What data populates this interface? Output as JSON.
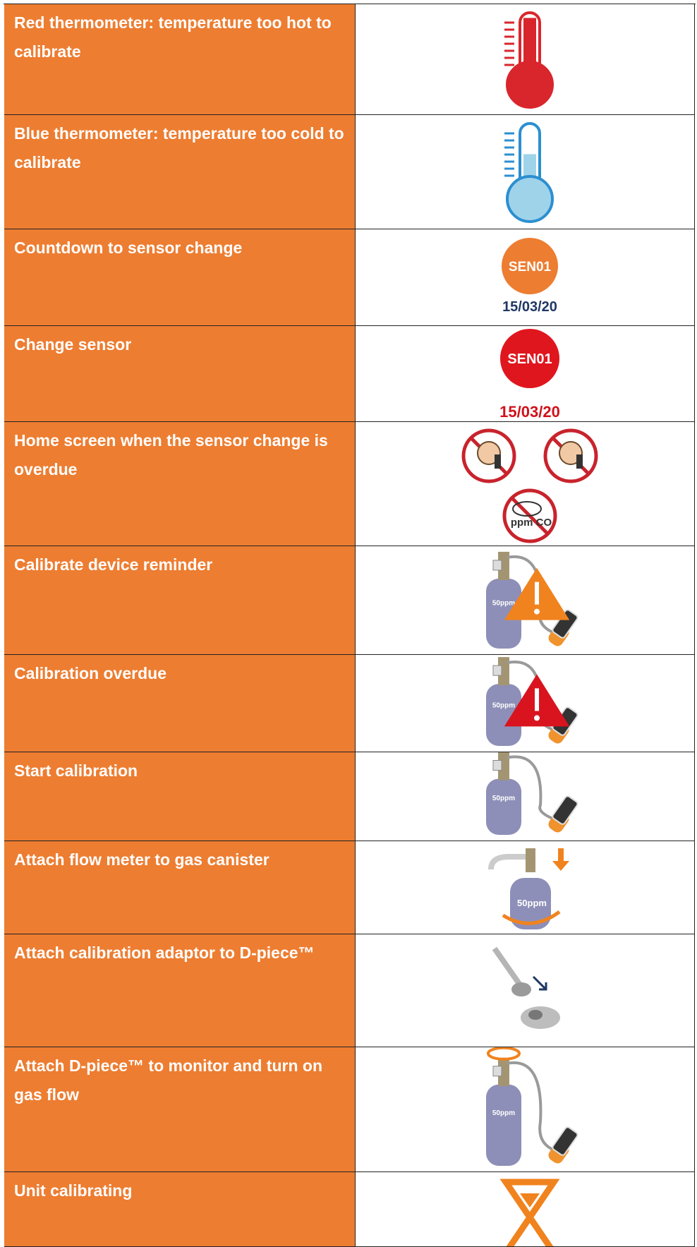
{
  "table": {
    "rows": [
      {
        "label": "Red thermometer: temperature too hot to calibrate"
      },
      {
        "label": "Blue thermometer: temperature too cold to calibrate"
      },
      {
        "label": "Countdown to sensor change",
        "icon_texts": [
          "SEN01",
          "15/03/20"
        ]
      },
      {
        "label": "Change sensor",
        "icon_texts": [
          "SEN01",
          "15/03/20"
        ]
      },
      {
        "label": "Home screen when the sensor change is overdue",
        "icon_texts": [
          "ppm CO"
        ]
      },
      {
        "label": "Calibrate device reminder",
        "icon_texts": [
          "50ppm"
        ]
      },
      {
        "label": "Calibration overdue",
        "icon_texts": [
          "50ppm"
        ]
      },
      {
        "label": "Start calibration",
        "icon_texts": [
          "50ppm"
        ]
      },
      {
        "label": "Attach flow meter to gas canister",
        "icon_texts": [
          "50ppm"
        ]
      },
      {
        "label": "Attach calibration adaptor to D-piece™"
      },
      {
        "label": "Attach D-piece™ to monitor and turn on gas flow",
        "icon_texts": [
          "50ppm"
        ]
      },
      {
        "label": "Unit calibrating"
      }
    ]
  }
}
